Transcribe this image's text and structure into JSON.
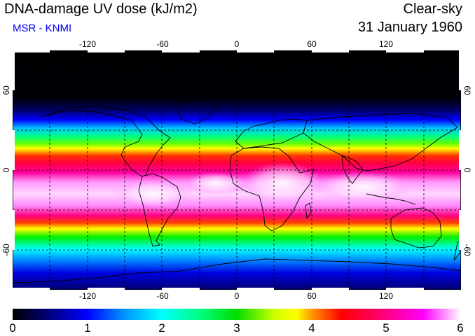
{
  "header": {
    "title": "DNA-damage UV dose (kJ/m2)",
    "subtitle": "MSR - KNMI",
    "condition": "Clear-sky",
    "date": "31 January 1960"
  },
  "map": {
    "projection": "equirectangular",
    "lon_range": [
      -180,
      180
    ],
    "lat_range": [
      -90,
      90
    ],
    "lon_ticks": [
      "-120",
      "-60",
      "0",
      "60",
      "120"
    ],
    "lat_ticks_left": [
      "60",
      "0",
      "-60"
    ],
    "lat_ticks_right": [
      "60",
      "0",
      "-60"
    ],
    "grid": "dashed 30-degree",
    "land_outline_color": "#000000"
  },
  "colorbar": {
    "labels": [
      "0",
      "1",
      "2",
      "3",
      "4",
      "5",
      "6"
    ],
    "min": 0,
    "max": 6,
    "stops": [
      {
        "v": 0.0,
        "c": "#000000"
      },
      {
        "v": 0.5,
        "c": "#000080"
      },
      {
        "v": 1.0,
        "c": "#0000ff"
      },
      {
        "v": 1.5,
        "c": "#0096ff"
      },
      {
        "v": 2.0,
        "c": "#00ffff"
      },
      {
        "v": 2.5,
        "c": "#00ff80"
      },
      {
        "v": 3.0,
        "c": "#00dd00"
      },
      {
        "v": 3.5,
        "c": "#ccff00"
      },
      {
        "v": 3.8,
        "c": "#ffff00"
      },
      {
        "v": 4.0,
        "c": "#ff9900"
      },
      {
        "v": 4.4,
        "c": "#ff0000"
      },
      {
        "v": 5.0,
        "c": "#ff0080"
      },
      {
        "v": 5.5,
        "c": "#ff00ff"
      },
      {
        "v": 6.0,
        "c": "#ffffff"
      }
    ]
  }
}
